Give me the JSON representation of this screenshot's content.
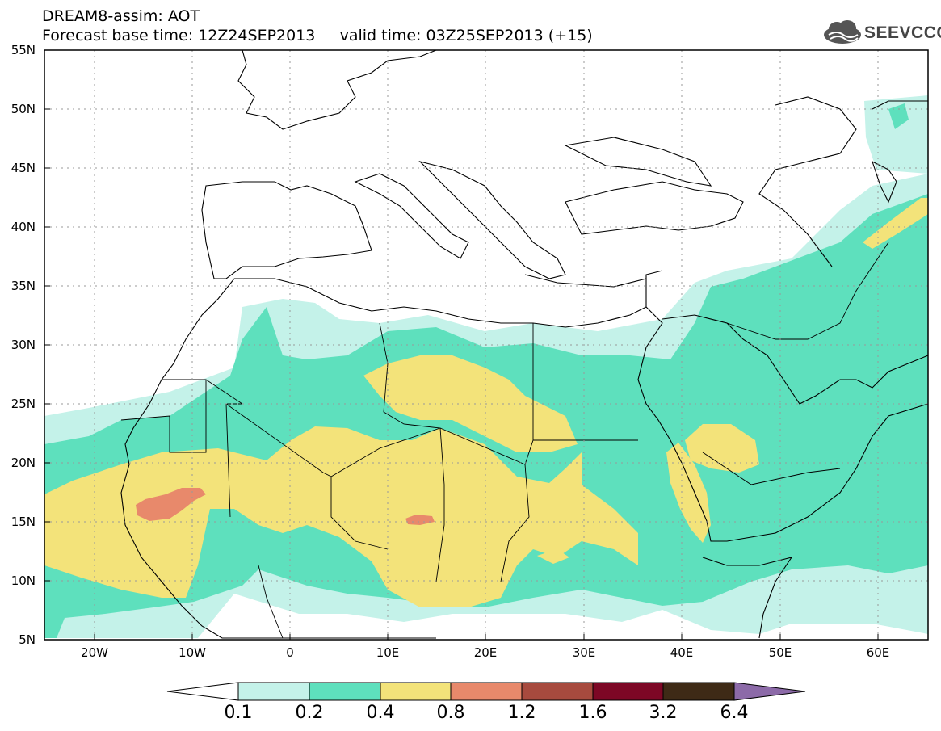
{
  "header": {
    "line1": "DREAM8-assim: AOT",
    "line2": "Forecast base time: 12Z24SEP2013     valid time: 03Z25SEP2013 (+15)"
  },
  "logo": {
    "text": "SEEVCCC",
    "icon": "cloud-icon"
  },
  "map": {
    "lat_labels": [
      "55N",
      "50N",
      "45N",
      "40N",
      "35N",
      "30N",
      "25N",
      "20N",
      "15N",
      "10N",
      "5N"
    ],
    "lon_labels": [
      "20W",
      "10W",
      "0",
      "10E",
      "20E",
      "30E",
      "40E",
      "50E",
      "60E"
    ],
    "extent": {
      "lon": [
        -25,
        65
      ],
      "lat": [
        5,
        55
      ]
    },
    "field": "AOT"
  },
  "colorbar": {
    "levels": [
      "0.1",
      "0.2",
      "0.4",
      "0.8",
      "1.2",
      "1.6",
      "3.2",
      "6.4"
    ],
    "colors": [
      "#ffffff",
      "#c4f2e9",
      "#5ee0bd",
      "#f3e37a",
      "#e8896b",
      "#a74a3e",
      "#7d0725",
      "#3e2a16",
      "#8c6aa8"
    ]
  }
}
